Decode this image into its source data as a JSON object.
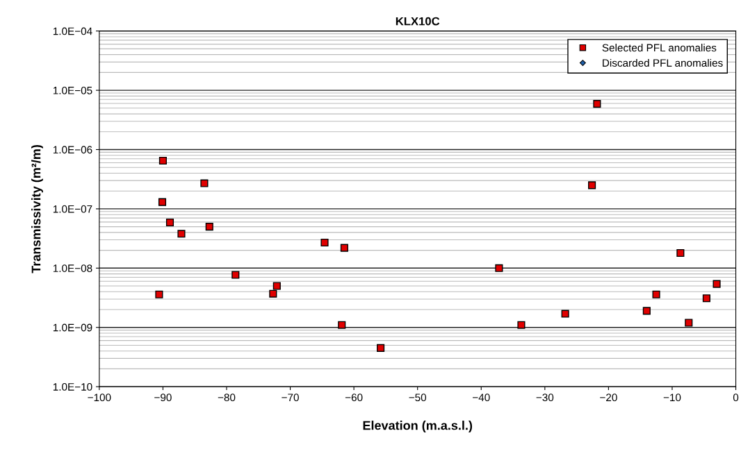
{
  "chart_data": {
    "type": "scatter",
    "title": "KLX10C",
    "xlabel": "Elevation (m.a.s.l.)",
    "ylabel": "Transmissivity (m²/m)",
    "series": [
      {
        "name": "Selected PFL anomalies",
        "color": "#e00000",
        "marker": "square",
        "x": [
          -90.0,
          -83.5,
          -90.1,
          -88.9,
          -82.7,
          -87.1,
          -78.6,
          -72.1,
          -72.7,
          -90.6,
          -64.6,
          -61.5,
          -37.2,
          -61.9,
          -55.8,
          -21.8,
          -22.6,
          -8.7,
          -12.5,
          -26.8,
          -14.0,
          -33.7,
          -7.4,
          -3.0,
          -4.6
        ],
        "values": [
          6.5e-07,
          2.7e-07,
          1.3e-07,
          5.9e-08,
          5e-08,
          3.8e-08,
          7.7e-09,
          5e-09,
          3.7e-09,
          3.6e-09,
          2.7e-08,
          2.2e-08,
          1e-08,
          1.1e-09,
          4.5e-10,
          5.9e-06,
          2.5e-07,
          1.8e-08,
          3.6e-09,
          1.7e-09,
          1.9e-09,
          1.1e-09,
          1.2e-09,
          5.4e-09,
          3.1e-09
        ]
      },
      {
        "name": "Discarded PFL anomalies",
        "color": "#1f5fa8",
        "marker": "diamond"
      }
    ],
    "log": "y",
    "xlim": [
      -100,
      0
    ],
    "ylim": [
      1e-10,
      0.0001
    ],
    "xticks": [
      {
        "value": -100,
        "label": "−100"
      },
      {
        "value": -90,
        "label": "−90"
      },
      {
        "value": -80,
        "label": "−80"
      },
      {
        "value": -70,
        "label": "−70"
      },
      {
        "value": -60,
        "label": "−60"
      },
      {
        "value": -50,
        "label": "−50"
      },
      {
        "value": -40,
        "label": "−40"
      },
      {
        "value": -30,
        "label": "−30"
      },
      {
        "value": -20,
        "label": "−20"
      },
      {
        "value": -10,
        "label": "−10"
      },
      0
    ],
    "yticks": [
      {
        "value": 1e-10,
        "label": "1.0E−10"
      },
      {
        "value": 1e-09,
        "label": "1.0E−09"
      },
      {
        "value": 1e-08,
        "label": "1.0E−08"
      },
      {
        "value": 1e-07,
        "label": "1.0E−07"
      },
      {
        "value": 1e-06,
        "label": "1.0E−06"
      },
      {
        "value": 1e-05,
        "label": "1.0E−05"
      },
      {
        "value": 0.0001,
        "label": "1.0E−04"
      }
    ],
    "grid": "y",
    "legend": "top right"
  }
}
